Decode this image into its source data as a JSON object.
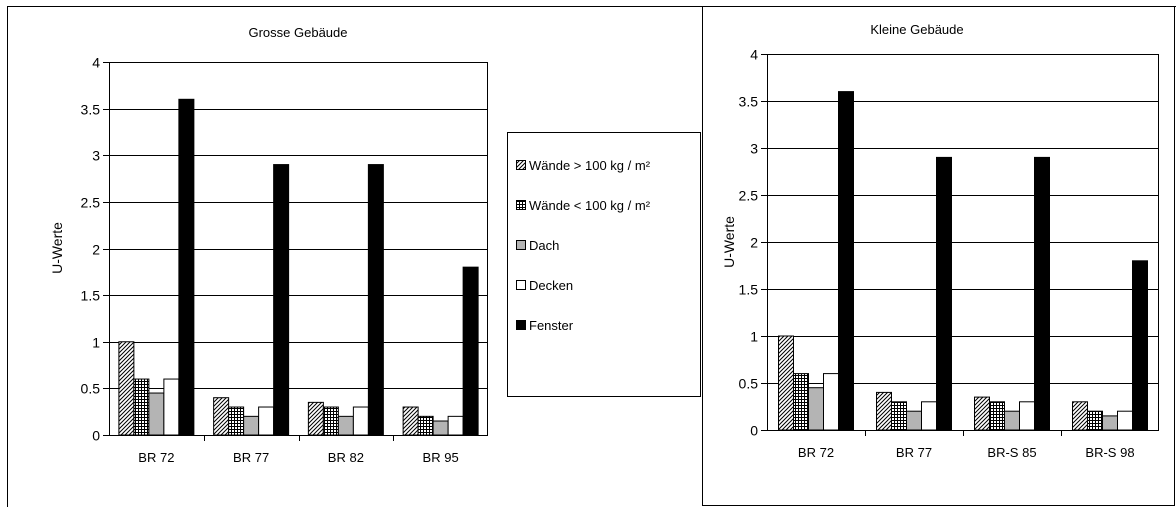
{
  "colors": {
    "walls_heavy": "#cfcfcf",
    "walls_light": "#9a9a9a",
    "roof": "#b4b4b4",
    "ceilings": "#ffffff",
    "windows": "#000000",
    "grid": "#000000",
    "frame": "#000000"
  },
  "legend": {
    "placement": "between-charts",
    "entries": [
      {
        "key": "walls_heavy",
        "label": "Wände > 100 kg / m²",
        "pattern": "diagonal-hatch"
      },
      {
        "key": "walls_light",
        "label": "Wände < 100 kg / m²",
        "pattern": "grid-hatch"
      },
      {
        "key": "roof",
        "label": "Dach",
        "pattern": "solid-gray"
      },
      {
        "key": "ceilings",
        "label": "Decken",
        "pattern": "white"
      },
      {
        "key": "windows",
        "label": "Fenster",
        "pattern": "solid-black"
      }
    ]
  },
  "chart_data": [
    {
      "type": "bar",
      "title": "Grosse Gebäude",
      "xlabel": "",
      "ylabel": "U-Werte",
      "ylim": [
        0,
        4
      ],
      "yticks": [
        "0",
        "0.5",
        "1",
        "1.5",
        "2",
        "2.5",
        "3",
        "3.5",
        "4"
      ],
      "grid": true,
      "categories": [
        "BR 72",
        "BR 77",
        "BR 82",
        "BR 95"
      ],
      "series": [
        {
          "name": "Wände > 100 kg / m²",
          "values": [
            1.0,
            0.4,
            0.35,
            0.3
          ]
        },
        {
          "name": "Wände < 100 kg / m²",
          "values": [
            0.6,
            0.3,
            0.3,
            0.2
          ]
        },
        {
          "name": "Dach",
          "values": [
            0.45,
            0.2,
            0.2,
            0.15
          ]
        },
        {
          "name": "Decken",
          "values": [
            0.6,
            0.3,
            0.3,
            0.2
          ]
        },
        {
          "name": "Fenster",
          "values": [
            3.6,
            2.9,
            2.9,
            1.8
          ]
        }
      ]
    },
    {
      "type": "bar",
      "title": "Kleine Gebäude",
      "xlabel": "",
      "ylabel": "U-Werte",
      "ylim": [
        0,
        4
      ],
      "yticks": [
        "0",
        "0.5",
        "1",
        "1.5",
        "2",
        "2.5",
        "3",
        "3.5",
        "4"
      ],
      "grid": true,
      "categories": [
        "BR 72",
        "BR 77",
        "BR-S 85",
        "BR-S 98"
      ],
      "series": [
        {
          "name": "Wände > 100 kg / m²",
          "values": [
            1.0,
            0.4,
            0.35,
            0.3
          ]
        },
        {
          "name": "Wände < 100 kg / m²",
          "values": [
            0.6,
            0.3,
            0.3,
            0.2
          ]
        },
        {
          "name": "Dach",
          "values": [
            0.45,
            0.2,
            0.2,
            0.15
          ]
        },
        {
          "name": "Decken",
          "values": [
            0.6,
            0.3,
            0.3,
            0.2
          ]
        },
        {
          "name": "Fenster",
          "values": [
            3.6,
            2.9,
            2.9,
            1.8
          ]
        }
      ]
    }
  ]
}
